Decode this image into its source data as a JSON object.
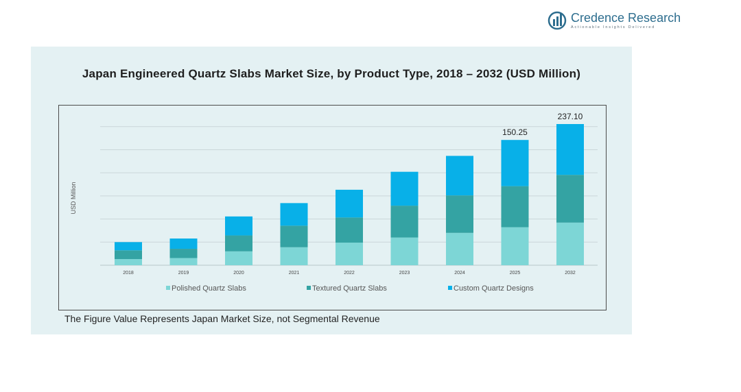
{
  "brand": {
    "name": "Credence Research",
    "tagline": "Actionable Insights Delivered",
    "icon": "bar-chart-logo-icon"
  },
  "footnote": "The Figure Value Represents Japan Market Size, not Segmental Revenue",
  "chart_data": {
    "type": "bar",
    "stacked": true,
    "title": "Japan Engineered  Quartz Slabs Market Size, by Product Type, 2018 – 2032 (USD Million)",
    "xlabel": "",
    "ylabel": "USD Million",
    "ylim": [
      0,
      275
    ],
    "grid": true,
    "legend_position": "bottom",
    "categories": [
      "2018",
      "2019",
      "2020",
      "2021",
      "2022",
      "2023",
      "2024",
      "2025",
      "2032"
    ],
    "series": [
      {
        "name": "Polished Quartz Slabs",
        "color": "#7dd6d6",
        "values": [
          12,
          14,
          27,
          35,
          44,
          54,
          63,
          74,
          83
        ]
      },
      {
        "name": "Textured Quartz Slabs",
        "color": "#34a3a3",
        "values": [
          17,
          18,
          31,
          42,
          49,
          62,
          73,
          80,
          93
        ]
      },
      {
        "name": "Custom Quartz Designs",
        "color": "#08b0e8",
        "values": [
          16,
          20,
          37,
          44,
          54,
          66,
          77,
          90,
          99
        ]
      }
    ],
    "total_labels": [
      {
        "category": "2025",
        "text": "150.25"
      },
      {
        "category": "2032",
        "text": "237.10"
      }
    ]
  }
}
